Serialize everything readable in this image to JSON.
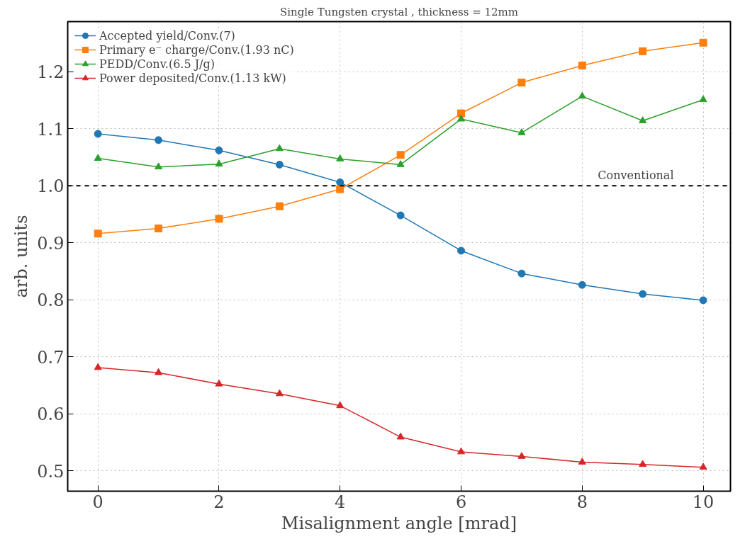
{
  "chart_data": {
    "type": "line",
    "title": "Single Tungsten crystal , thickness = 12mm",
    "xlabel": "Misalignment angle [mrad]",
    "ylabel": "arb. units",
    "x": [
      0,
      1,
      2,
      3,
      4,
      5,
      6,
      7,
      8,
      9,
      10
    ],
    "series": [
      {
        "name": "Accepted yield/Conv.(7)",
        "color": "#1f77b4",
        "marker": "circle",
        "values": [
          1.091,
          1.08,
          1.062,
          1.037,
          1.006,
          0.948,
          0.886,
          0.846,
          0.826,
          0.81,
          0.799
        ]
      },
      {
        "name": "Primary e⁻ charge/Conv.(1.93 nC)",
        "color": "#ff7f0e",
        "marker": "square",
        "values": [
          0.916,
          0.925,
          0.942,
          0.964,
          0.994,
          1.054,
          1.127,
          1.181,
          1.211,
          1.236,
          1.251
        ]
      },
      {
        "name": "PEDD/Conv.(6.5 J/g)",
        "color": "#2ca02c",
        "marker": "triangle",
        "values": [
          1.048,
          1.033,
          1.038,
          1.065,
          1.047,
          1.037,
          1.117,
          1.093,
          1.157,
          1.114,
          1.151
        ]
      },
      {
        "name": "Power deposited/Conv.(1.13 kW)",
        "color": "#d62728",
        "marker": "triangle",
        "values": [
          0.681,
          0.672,
          0.652,
          0.635,
          0.614,
          0.559,
          0.533,
          0.525,
          0.515,
          0.511,
          0.506
        ]
      }
    ],
    "xlim": [
      -0.5,
      10.45
    ],
    "ylim": [
      0.464,
      1.288
    ],
    "xticks": [
      0,
      2,
      4,
      6,
      8,
      10
    ],
    "yticks": [
      {
        "value": 0.5,
        "label": "0.5"
      },
      {
        "value": 0.6,
        "label": "0.6"
      },
      {
        "value": 0.7,
        "label": "0.7"
      },
      {
        "value": 0.8,
        "label": "0.8"
      },
      {
        "value": 0.9,
        "label": "0.9"
      },
      {
        "value": 1.0,
        "label": "1.0"
      },
      {
        "value": 1.1,
        "label": "1.1"
      },
      {
        "value": 1.2,
        "label": "1.2"
      }
    ],
    "ref_lines": [
      {
        "axis": "y",
        "value": 1.0,
        "label": "Conventional",
        "color": "#000000",
        "line_style": "dashed"
      }
    ],
    "grid": true,
    "legend": "top left",
    "line_style": "solid"
  }
}
